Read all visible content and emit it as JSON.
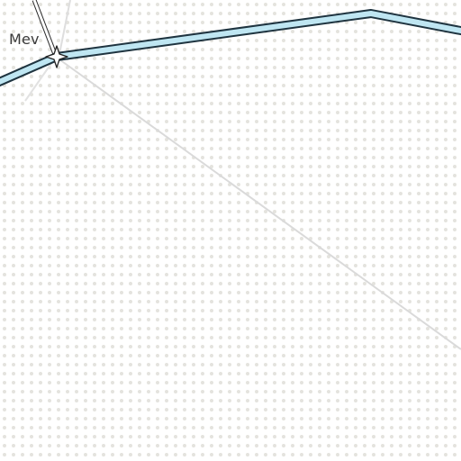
{
  "map": {
    "place_label": "Mev",
    "colors": {
      "background": "#ffffff",
      "dot_pattern": "#e4e3de",
      "main_road_fill": "#bfe6f2",
      "main_road_casing": "#1f3440",
      "minor_path": "#dadada",
      "label_text": "#3a3a3a",
      "junction_marker": "#ffffff"
    },
    "icons": {
      "junction": "star-junction-icon"
    }
  }
}
